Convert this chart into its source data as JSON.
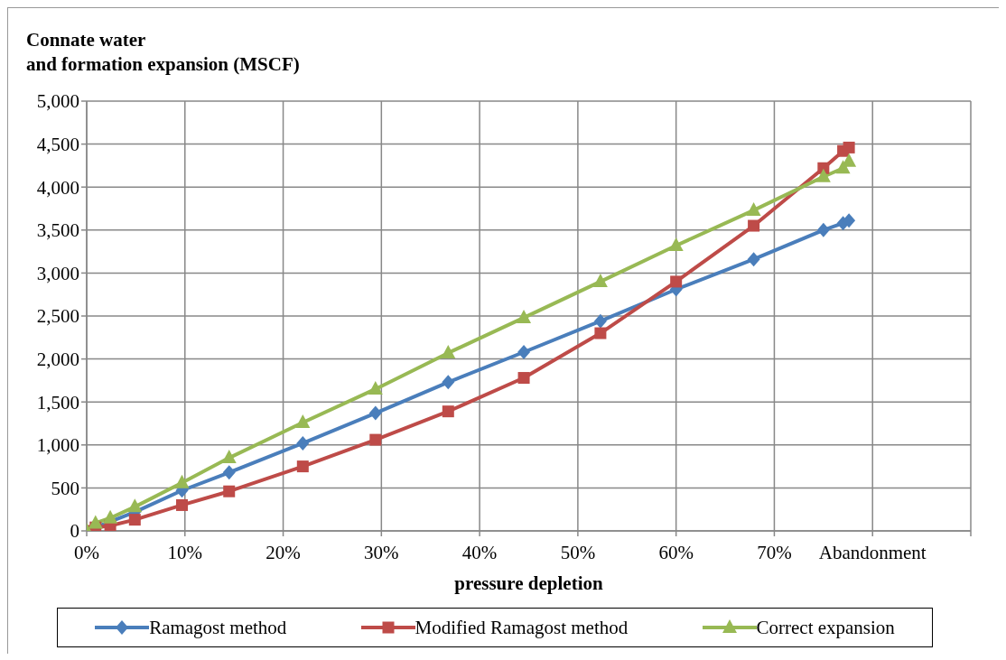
{
  "chart_data": {
    "type": "line",
    "ylabel": "Connate water\nand formation expansion (MSCF)",
    "xlabel": "pressure depletion",
    "x": [
      0,
      0.9,
      2.4,
      4.9,
      9.7,
      14.5,
      22.0,
      29.4,
      36.8,
      44.5,
      52.3,
      60.0,
      67.9,
      75.0,
      77.0,
      77.6
    ],
    "series": [
      {
        "name": "Ramagost method",
        "color": "#4a7ebb",
        "marker": "diamond",
        "values": [
          0,
          40,
          null,
          220,
          470,
          680,
          1020,
          1370,
          1730,
          2080,
          2440,
          2810,
          3160,
          3500,
          3580,
          3610
        ]
      },
      {
        "name": "Modified Ramagost method",
        "color": "#be4b48",
        "marker": "square",
        "values": [
          0,
          40,
          60,
          130,
          300,
          460,
          750,
          1060,
          1390,
          1780,
          2300,
          2900,
          3550,
          4220,
          4420,
          4460
        ]
      },
      {
        "name": "Correct expansion",
        "color": "#98b954",
        "marker": "triangle",
        "values": [
          0,
          90,
          150,
          280,
          560,
          850,
          1260,
          1650,
          2070,
          2480,
          2900,
          3320,
          3730,
          4120,
          4220,
          4300
        ]
      }
    ],
    "xlim": [
      0,
      90
    ],
    "xticks": [
      {
        "value": 0,
        "label": "0%"
      },
      {
        "value": 10,
        "label": "10%"
      },
      {
        "value": 20,
        "label": "20%"
      },
      {
        "value": 30,
        "label": "30%"
      },
      {
        "value": 40,
        "label": "40%"
      },
      {
        "value": 50,
        "label": "50%"
      },
      {
        "value": 60,
        "label": "60%"
      },
      {
        "value": 70,
        "label": "70%"
      },
      {
        "value": 80,
        "label": "Abandonment"
      },
      {
        "value": 90,
        "label": null
      }
    ],
    "ylim": [
      0,
      5000
    ],
    "yticks": [
      0,
      500,
      {
        "value": 1000,
        "label": "1,000"
      },
      {
        "value": 1500,
        "label": "1,500"
      },
      {
        "value": 2000,
        "label": "2,000"
      },
      {
        "value": 2500,
        "label": "2,500"
      },
      {
        "value": 3000,
        "label": "3,000"
      },
      {
        "value": 3500,
        "label": "3,500"
      },
      {
        "value": 4000,
        "label": "4,000"
      },
      {
        "value": 4500,
        "label": "4,500"
      },
      {
        "value": 5000,
        "label": "5,000"
      }
    ],
    "grid": true,
    "legend": "bottom",
    "line_style": "solid"
  }
}
